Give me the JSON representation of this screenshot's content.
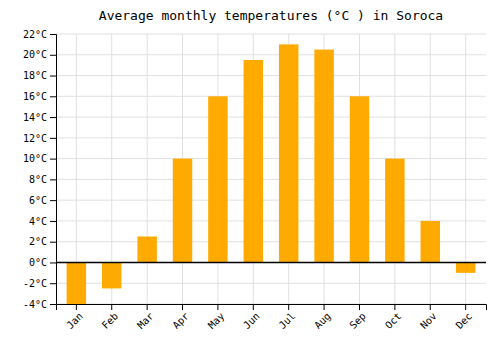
{
  "chart_data": {
    "type": "bar",
    "title": "Average monthly temperatures (°C ) in Soroca",
    "categories": [
      "Jan",
      "Feb",
      "Mar",
      "Apr",
      "May",
      "Jun",
      "Jul",
      "Aug",
      "Sep",
      "Oct",
      "Nov",
      "Dec"
    ],
    "values": [
      -4,
      -2.5,
      2.5,
      10,
      16,
      19.5,
      21,
      20.5,
      16,
      10,
      4,
      -1
    ],
    "color": "#FFAA00",
    "ylim": [
      -4,
      22
    ],
    "yticks": [
      {
        "value": -4,
        "label": "-4°C"
      },
      {
        "value": -2,
        "label": "-2°C"
      },
      {
        "value": 0,
        "label": "0°C"
      },
      {
        "value": 2,
        "label": "2°C"
      },
      {
        "value": 4,
        "label": "4°C"
      },
      {
        "value": 6,
        "label": "6°C"
      },
      {
        "value": 8,
        "label": "8°C"
      },
      {
        "value": 10,
        "label": "10°C"
      },
      {
        "value": 12,
        "label": "12°C"
      },
      {
        "value": 14,
        "label": "14°C"
      },
      {
        "value": 16,
        "label": "16°C"
      },
      {
        "value": 18,
        "label": "18°C"
      },
      {
        "value": 20,
        "label": "20°C"
      },
      {
        "value": 22,
        "label": "22°C"
      }
    ],
    "grid": true
  }
}
